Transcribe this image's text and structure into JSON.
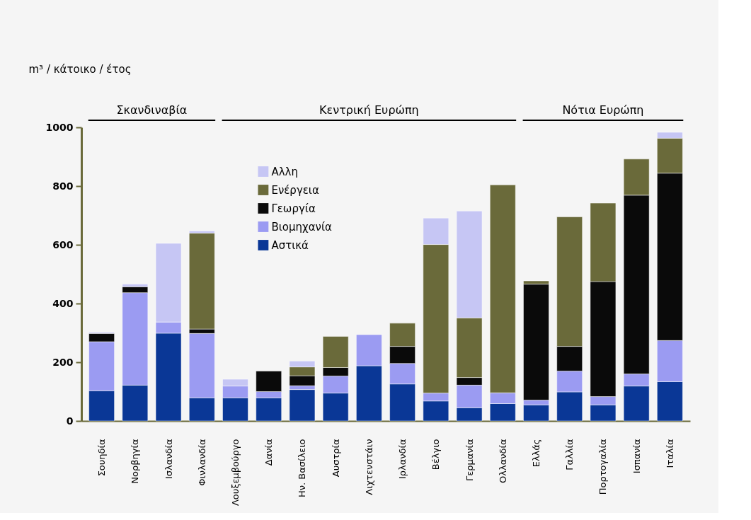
{
  "chart_data": {
    "type": "bar",
    "stacked": true,
    "ylabel": "m³ / κάτοικο / έτος",
    "categories": [
      "Σουηδία",
      "Νορβηγία",
      "Ισλανδία",
      "Φινλανδία",
      "Λουξεμβούργο",
      "Δανία",
      "Ην. Βασίλειο",
      "Αυστρία",
      "Λιχτενστάιν",
      "Ιρλανδία",
      "Βέλγιο",
      "Γερμανία",
      "Ολλανδία",
      "Ελλάς",
      "Γαλλία",
      "Πορτογαλία",
      "Ισπανία",
      "Ιταλία"
    ],
    "series": [
      {
        "name": "Αστικά",
        "color": "#0a3796",
        "values": [
          103,
          122,
          299,
          79,
          79,
          79,
          107,
          95,
          188,
          126,
          68,
          45,
          59,
          55,
          99,
          55,
          119,
          134
        ]
      },
      {
        "name": "Βιομηχανία",
        "color": "#9b9bf2",
        "values": [
          167,
          315,
          38,
          219,
          40,
          21,
          13,
          58,
          106,
          70,
          27,
          77,
          37,
          16,
          71,
          28,
          41,
          140
        ]
      },
      {
        "name": "Γεωργία",
        "color": "#0a0a0a",
        "values": [
          28,
          20,
          null,
          15,
          null,
          70,
          34,
          29,
          null,
          58,
          null,
          26,
          null,
          395,
          84,
          392,
          609,
          570
        ]
      },
      {
        "name": "Ενέργεια",
        "color": "#6a6a3a",
        "values": [
          null,
          null,
          null,
          327,
          null,
          null,
          30,
          106,
          null,
          79,
          506,
          203,
          708,
          11,
          441,
          267,
          123,
          119
        ]
      },
      {
        "name": "Αλλη",
        "color": "#c6c6f4",
        "values": [
          4,
          9,
          268,
          7,
          23,
          null,
          20,
          null,
          null,
          null,
          90,
          364,
          null,
          null,
          null,
          null,
          null,
          20
        ]
      }
    ],
    "ylim": [
      0,
      1000
    ],
    "yticks": [
      0,
      200,
      400,
      600,
      800,
      1000
    ],
    "grid": false,
    "legend": "top",
    "annotations": [
      "Σκανδιναβία",
      "Κεντρική Ευρώπη",
      "Νότια Ευρώπη"
    ]
  }
}
